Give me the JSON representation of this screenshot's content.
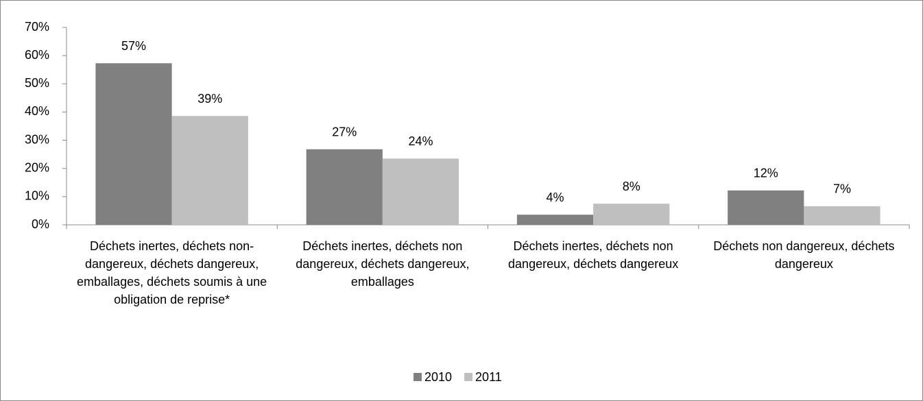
{
  "chart_data": {
    "type": "bar",
    "categories": [
      "Déchets inertes, déchets non-dangereux, déchets dangereux, emballages, déchets soumis à une obligation de reprise*",
      "Déchets inertes, déchets non dangereux, déchets dangereux, emballages",
      "Déchets inertes, déchets non dangereux, déchets dangereux",
      "Déchets non dangereux, déchets dangereux"
    ],
    "series": [
      {
        "name": "2010",
        "color": "#808080",
        "values": [
          57.3,
          26.8,
          3.6,
          12.2
        ],
        "value_labels": [
          "57%",
          "27%",
          "4%",
          "12%"
        ]
      },
      {
        "name": "2011",
        "color": "#bfbfbf",
        "values": [
          38.6,
          23.5,
          7.5,
          6.6
        ],
        "value_labels": [
          "39%",
          "24%",
          "8%",
          "7%"
        ]
      }
    ],
    "ylim": [
      0,
      70
    ],
    "yticks": [
      {
        "value": 0,
        "label": "0%"
      },
      {
        "value": 10,
        "label": "10%"
      },
      {
        "value": 20,
        "label": "20%"
      },
      {
        "value": 30,
        "label": "30%"
      },
      {
        "value": 40,
        "label": "40%"
      },
      {
        "value": 50,
        "label": "50%"
      },
      {
        "value": 60,
        "label": "60%"
      },
      {
        "value": 70,
        "label": "70%"
      }
    ],
    "grid": false,
    "legend": "bottom"
  }
}
